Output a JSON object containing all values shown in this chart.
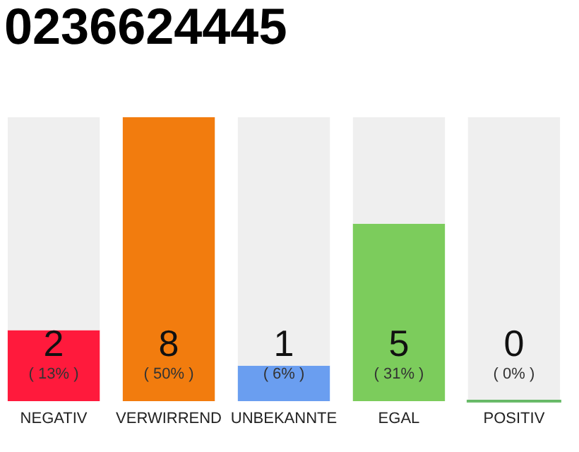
{
  "chart_data": {
    "type": "bar",
    "title": "0236624445",
    "stacked": true,
    "categories": [
      "NEGATIV",
      "VERWIRREND",
      "UNBEKANNTE",
      "EGAL",
      "POSITIV"
    ],
    "series": [
      {
        "colors": [
          "#ff1a3c",
          "#f27c0e",
          "#6a9ef0",
          "#7ccc5c",
          "#2ca02c"
        ],
        "values": [
          2,
          8,
          1,
          5,
          0
        ],
        "value_labels": [
          "2",
          "8",
          "1",
          "5",
          "0"
        ]
      },
      {
        "color": "#efefef",
        "values": [
          6,
          0,
          7,
          3,
          8
        ]
      }
    ],
    "annotations": [
      "( 13% )",
      "( 50% )",
      "( 6% )",
      "( 31% )",
      "( 0% )"
    ],
    "ylim": [
      0,
      8
    ],
    "tick_labels": "x",
    "grid": false
  }
}
